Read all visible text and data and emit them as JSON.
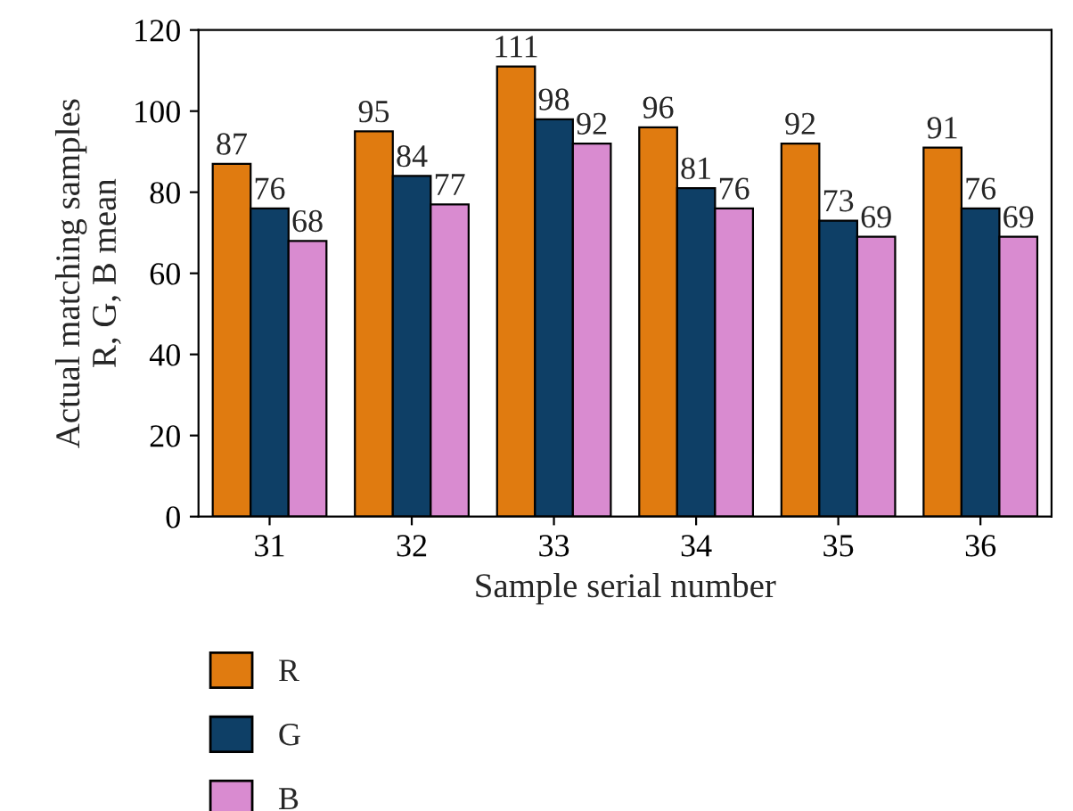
{
  "chart_data": {
    "type": "bar",
    "xlabel": "Sample serial number",
    "ylabel": "Actual matching samples\nR, G, B mean",
    "categories": [
      "31",
      "32",
      "33",
      "34",
      "35",
      "36"
    ],
    "series": [
      {
        "name": "R",
        "color": "#e07b10",
        "values": [
          87,
          95,
          111,
          96,
          92,
          91
        ]
      },
      {
        "name": "G",
        "color": "#0e3f66",
        "values": [
          76,
          84,
          98,
          81,
          73,
          76
        ]
      },
      {
        "name": "B",
        "color": "#d98bd0",
        "values": [
          68,
          77,
          92,
          76,
          69,
          69
        ]
      }
    ],
    "ylim": [
      0,
      120
    ],
    "yticks": [
      0,
      20,
      40,
      60,
      80,
      100,
      120
    ],
    "data_labels": true,
    "legend": "bottom left",
    "grid": false
  }
}
